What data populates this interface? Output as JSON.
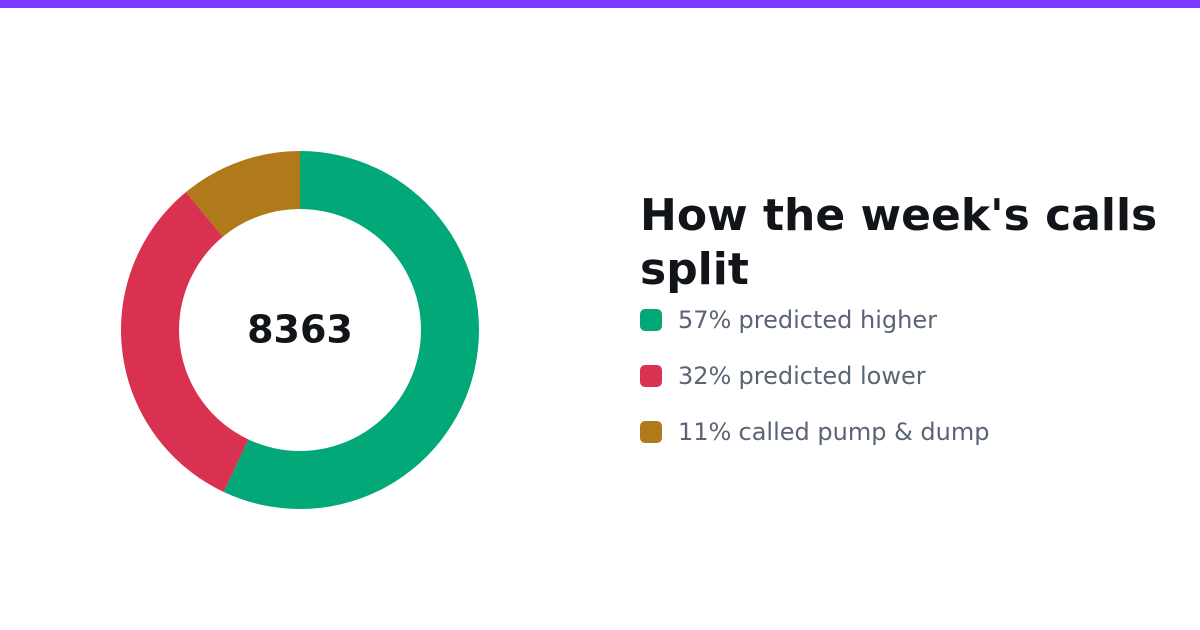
{
  "chart_data": {
    "type": "donut",
    "title": "How the week's calls split",
    "center_label": "8363",
    "categories": [
      "predicted higher",
      "predicted lower",
      "called pump & dump"
    ],
    "values": [
      57,
      32,
      11
    ],
    "value_labels": [
      "57%",
      "32%",
      "11%"
    ],
    "colors": [
      "#02a878",
      "#d93250",
      "#b07a1a"
    ]
  }
}
